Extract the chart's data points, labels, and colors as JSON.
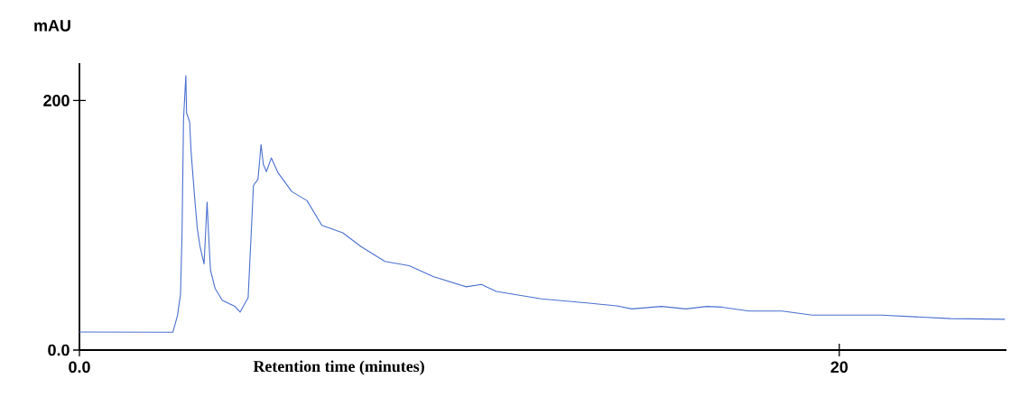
{
  "chart_data": {
    "type": "line",
    "xlabel": "Retention time (minutes)",
    "ylabel": "mAU",
    "xlim": [
      0,
      24.4
    ],
    "ylim": [
      0,
      230
    ],
    "xticks": [
      {
        "value": 0,
        "label": "0.0"
      },
      20
    ],
    "yticks": [
      {
        "value": 0,
        "label": "0.0"
      },
      200
    ],
    "grid": false,
    "legend": false,
    "marker": "none",
    "line_style": "solid",
    "series": [
      {
        "color": "#4a6fd0",
        "x": [
          0,
          2.46,
          2.58,
          2.66,
          2.7,
          2.74,
          2.8,
          2.82,
          2.9,
          2.94,
          3.02,
          3.1,
          3.17,
          3.28,
          3.36,
          3.41,
          3.45,
          3.57,
          3.76,
          4.09,
          4.23,
          4.44,
          4.52,
          4.58,
          4.7,
          4.78,
          4.84,
          4.92,
          5.05,
          5.23,
          5.59,
          5.99,
          6.38,
          6.93,
          7.41,
          8.04,
          8.68,
          9.31,
          10.18,
          10.58,
          10.97,
          12.16,
          13.35,
          14.14,
          14.54,
          15.32,
          15.96,
          16.51,
          16.91,
          17.62,
          18.49,
          19.29,
          21.1,
          22.93,
          24.36
        ],
        "values": [
          14.5,
          14.3,
          27.6,
          44.6,
          93,
          185,
          220,
          190,
          183,
          158.5,
          127,
          98,
          83.6,
          69,
          118.5,
          86,
          64,
          49.4,
          40,
          35,
          30.5,
          42,
          93,
          132,
          137,
          164.6,
          149,
          143,
          154,
          142,
          127,
          119.8,
          100,
          94,
          83,
          71,
          67.6,
          59,
          50.7,
          52.6,
          47,
          41,
          37.8,
          35.4,
          33,
          35,
          33,
          35,
          34.4,
          31.3,
          31.3,
          28,
          28,
          25.2,
          24.7
        ]
      }
    ]
  }
}
